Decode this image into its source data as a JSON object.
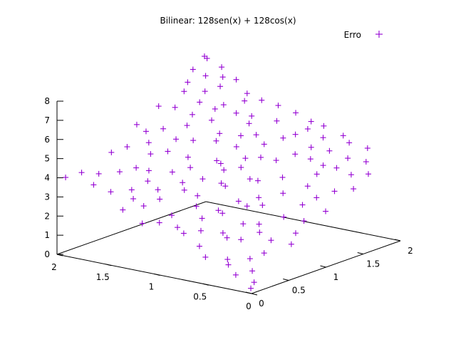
{
  "chart_data": {
    "type": "scatter",
    "title": "Bilinear: 128sen(x) + 128cos(x)",
    "legend": {
      "label": "Erro",
      "placement": "top-right"
    },
    "marker": "plus",
    "color": "#9400d3",
    "axes": {
      "x": {
        "range": [
          0,
          2
        ],
        "ticks": [
          "0",
          "0.5",
          "1",
          "1.5",
          "2"
        ]
      },
      "y": {
        "range": [
          0,
          2
        ],
        "ticks": [
          "0",
          "0.5",
          "1",
          "1.5",
          "2"
        ]
      },
      "z": {
        "range": [
          0,
          8
        ],
        "ticks": [
          "0",
          "1",
          "2",
          "3",
          "4",
          "5",
          "6",
          "7",
          "8"
        ]
      }
    },
    "grid": false,
    "series": [
      {
        "name": "Erro",
        "points": [
          {
            "x": 0.05,
            "y": 0.1,
            "z": 0.4
          },
          {
            "x": 0.1,
            "y": 0.3,
            "z": 1.6
          },
          {
            "x": 0.2,
            "y": 0.05,
            "z": 0.7
          },
          {
            "x": 0.3,
            "y": 0.5,
            "z": 2.2
          },
          {
            "x": 0.4,
            "y": 0.2,
            "z": 1.1
          },
          {
            "x": 0.5,
            "y": 0.8,
            "z": 3.0
          },
          {
            "x": 0.6,
            "y": 0.4,
            "z": 2.0
          },
          {
            "x": 0.7,
            "y": 1.0,
            "z": 3.8
          },
          {
            "x": 0.8,
            "y": 0.6,
            "z": 2.7
          },
          {
            "x": 0.9,
            "y": 1.3,
            "z": 4.4
          },
          {
            "x": 1.0,
            "y": 0.9,
            "z": 3.5
          },
          {
            "x": 1.1,
            "y": 1.5,
            "z": 5.1
          },
          {
            "x": 1.2,
            "y": 1.1,
            "z": 4.2
          },
          {
            "x": 1.3,
            "y": 1.7,
            "z": 5.6
          },
          {
            "x": 1.4,
            "y": 1.4,
            "z": 5.0
          },
          {
            "x": 1.5,
            "y": 1.9,
            "z": 6.3
          },
          {
            "x": 1.6,
            "y": 1.6,
            "z": 5.8
          },
          {
            "x": 1.7,
            "y": 1.8,
            "z": 6.6
          },
          {
            "x": 1.8,
            "y": 1.95,
            "z": 7.3
          },
          {
            "x": 1.9,
            "y": 1.85,
            "z": 7.9
          },
          {
            "x": 0.15,
            "y": 0.9,
            "z": 2.4
          },
          {
            "x": 0.25,
            "y": 1.2,
            "z": 3.1
          },
          {
            "x": 0.35,
            "y": 1.6,
            "z": 4.0
          },
          {
            "x": 0.45,
            "y": 1.9,
            "z": 4.8
          },
          {
            "x": 0.55,
            "y": 0.1,
            "z": 1.2
          },
          {
            "x": 0.65,
            "y": 0.15,
            "z": 1.6
          },
          {
            "x": 0.75,
            "y": 0.3,
            "z": 2.1
          },
          {
            "x": 0.85,
            "y": 0.2,
            "z": 2.0
          },
          {
            "x": 0.95,
            "y": 0.5,
            "z": 2.9
          },
          {
            "x": 1.05,
            "y": 0.3,
            "z": 2.6
          },
          {
            "x": 1.15,
            "y": 0.6,
            "z": 3.4
          },
          {
            "x": 1.25,
            "y": 0.4,
            "z": 3.1
          },
          {
            "x": 1.35,
            "y": 0.7,
            "z": 4.0
          },
          {
            "x": 1.45,
            "y": 0.5,
            "z": 3.7
          },
          {
            "x": 1.55,
            "y": 0.9,
            "z": 4.6
          },
          {
            "x": 1.65,
            "y": 0.8,
            "z": 4.5
          },
          {
            "x": 1.75,
            "y": 1.1,
            "z": 5.3
          },
          {
            "x": 1.85,
            "y": 1.0,
            "z": 5.2
          },
          {
            "x": 1.95,
            "y": 1.3,
            "z": 6.0
          },
          {
            "x": 1.9,
            "y": 0.6,
            "z": 4.6
          },
          {
            "x": 0.1,
            "y": 1.5,
            "z": 3.3
          },
          {
            "x": 0.2,
            "y": 1.8,
            "z": 4.2
          },
          {
            "x": 0.3,
            "y": 1.95,
            "z": 4.6
          },
          {
            "x": 0.4,
            "y": 1.4,
            "z": 3.9
          },
          {
            "x": 0.5,
            "y": 1.7,
            "z": 4.6
          },
          {
            "x": 0.6,
            "y": 1.2,
            "z": 3.8
          },
          {
            "x": 0.7,
            "y": 1.5,
            "z": 4.5
          },
          {
            "x": 0.8,
            "y": 1.8,
            "z": 5.3
          },
          {
            "x": 0.9,
            "y": 1.6,
            "z": 5.0
          },
          {
            "x": 1.0,
            "y": 1.9,
            "z": 5.8
          },
          {
            "x": 1.1,
            "y": 0.2,
            "z": 2.3
          },
          {
            "x": 1.2,
            "y": 0.1,
            "z": 2.3
          },
          {
            "x": 1.3,
            "y": 0.25,
            "z": 2.9
          },
          {
            "x": 1.4,
            "y": 0.1,
            "z": 2.8
          },
          {
            "x": 1.5,
            "y": 0.35,
            "z": 3.4
          },
          {
            "x": 1.6,
            "y": 0.2,
            "z": 3.4
          },
          {
            "x": 1.7,
            "y": 0.45,
            "z": 4.0
          },
          {
            "x": 1.8,
            "y": 0.3,
            "z": 4.0
          },
          {
            "x": 1.9,
            "y": 0.2,
            "z": 4.1
          },
          {
            "x": 1.95,
            "y": 0.05,
            "z": 4.0
          },
          {
            "x": 0.05,
            "y": 0.6,
            "z": 1.7
          },
          {
            "x": 0.12,
            "y": 0.75,
            "z": 2.0
          },
          {
            "x": 0.22,
            "y": 0.55,
            "z": 1.8
          },
          {
            "x": 0.32,
            "y": 0.85,
            "z": 2.5
          },
          {
            "x": 0.42,
            "y": 0.65,
            "z": 2.3
          },
          {
            "x": 0.52,
            "y": 0.35,
            "z": 1.9
          },
          {
            "x": 0.62,
            "y": 0.75,
            "z": 2.9
          },
          {
            "x": 0.72,
            "y": 0.55,
            "z": 2.7
          },
          {
            "x": 0.82,
            "y": 1.05,
            "z": 3.7
          },
          {
            "x": 0.92,
            "y": 0.85,
            "z": 3.5
          },
          {
            "x": 1.02,
            "y": 1.25,
            "z": 4.3
          },
          {
            "x": 1.12,
            "y": 1.05,
            "z": 4.2
          },
          {
            "x": 1.22,
            "y": 1.45,
            "z": 5.0
          },
          {
            "x": 1.32,
            "y": 1.25,
            "z": 4.9
          },
          {
            "x": 1.42,
            "y": 1.65,
            "z": 5.7
          },
          {
            "x": 1.52,
            "y": 1.45,
            "z": 5.5
          },
          {
            "x": 1.62,
            "y": 1.25,
            "z": 5.4
          },
          {
            "x": 1.72,
            "y": 1.55,
            "z": 6.1
          },
          {
            "x": 1.82,
            "y": 1.35,
            "z": 6.0
          },
          {
            "x": 1.92,
            "y": 1.65,
            "z": 6.8
          },
          {
            "x": 0.08,
            "y": 1.1,
            "z": 2.7
          },
          {
            "x": 0.18,
            "y": 1.35,
            "z": 3.3
          },
          {
            "x": 0.28,
            "y": 1.05,
            "z": 2.9
          },
          {
            "x": 0.38,
            "y": 1.25,
            "z": 3.5
          },
          {
            "x": 0.48,
            "y": 1.05,
            "z": 3.3
          },
          {
            "x": 0.58,
            "y": 1.55,
            "z": 4.3
          },
          {
            "x": 0.68,
            "y": 1.85,
            "z": 4.9
          },
          {
            "x": 0.78,
            "y": 1.35,
            "z": 4.3
          },
          {
            "x": 0.88,
            "y": 1.95,
            "z": 5.4
          },
          {
            "x": 0.98,
            "y": 1.45,
            "z": 4.8
          },
          {
            "x": 1.08,
            "y": 1.75,
            "z": 5.5
          },
          {
            "x": 1.18,
            "y": 1.9,
            "z": 6.0
          },
          {
            "x": 1.28,
            "y": 0.85,
            "z": 4.1
          },
          {
            "x": 1.38,
            "y": 0.95,
            "z": 4.4
          },
          {
            "x": 1.48,
            "y": 1.15,
            "z": 4.9
          },
          {
            "x": 1.58,
            "y": 1.05,
            "z": 5.0
          },
          {
            "x": 1.68,
            "y": 1.4,
            "z": 5.7
          },
          {
            "x": 1.78,
            "y": 1.7,
            "z": 6.4
          },
          {
            "x": 1.88,
            "y": 1.55,
            "z": 6.5
          },
          {
            "x": 1.98,
            "y": 1.8,
            "z": 7.2
          },
          {
            "x": 0.03,
            "y": 0.03,
            "z": 0.2
          },
          {
            "x": 0.13,
            "y": 0.18,
            "z": 0.8
          },
          {
            "x": 0.23,
            "y": 0.28,
            "z": 1.2
          },
          {
            "x": 0.33,
            "y": 0.12,
            "z": 1.0
          },
          {
            "x": 0.43,
            "y": 0.42,
            "z": 1.8
          },
          {
            "x": 0.53,
            "y": 0.58,
            "z": 2.3
          },
          {
            "x": 0.63,
            "y": 0.92,
            "z": 3.1
          },
          {
            "x": 0.73,
            "y": 0.78,
            "z": 3.0
          },
          {
            "x": 0.83,
            "y": 0.42,
            "z": 2.5
          },
          {
            "x": 0.93,
            "y": 0.22,
            "z": 2.2
          },
          {
            "x": 1.03,
            "y": 0.62,
            "z": 3.2
          },
          {
            "x": 1.13,
            "y": 0.82,
            "z": 3.7
          },
          {
            "x": 1.23,
            "y": 0.68,
            "z": 3.6
          },
          {
            "x": 1.33,
            "y": 0.48,
            "z": 3.4
          },
          {
            "x": 1.43,
            "y": 0.28,
            "z": 3.1
          },
          {
            "x": 1.53,
            "y": 0.62,
            "z": 4.0
          },
          {
            "x": 1.63,
            "y": 0.58,
            "z": 4.1
          },
          {
            "x": 1.73,
            "y": 0.88,
            "z": 4.9
          },
          {
            "x": 1.83,
            "y": 0.72,
            "z": 4.8
          },
          {
            "x": 1.93,
            "y": 0.98,
            "z": 5.5
          },
          {
            "x": 0.1,
            "y": 1.7,
            "z": 3.8
          },
          {
            "x": 0.2,
            "y": 1.6,
            "z": 3.8
          },
          {
            "x": 0.35,
            "y": 1.75,
            "z": 4.3
          },
          {
            "x": 0.45,
            "y": 1.55,
            "z": 4.1
          },
          {
            "x": 0.55,
            "y": 1.95,
            "z": 5.0
          },
          {
            "x": 0.65,
            "y": 1.65,
            "z": 4.7
          },
          {
            "x": 0.75,
            "y": 1.95,
            "z": 5.3
          },
          {
            "x": 0.85,
            "y": 1.7,
            "z": 5.1
          },
          {
            "x": 0.95,
            "y": 1.1,
            "z": 4.1
          },
          {
            "x": 1.05,
            "y": 1.0,
            "z": 4.0
          },
          {
            "x": 1.15,
            "y": 1.3,
            "z": 4.7
          },
          {
            "x": 1.25,
            "y": 1.6,
            "z": 5.4
          },
          {
            "x": 1.35,
            "y": 1.9,
            "z": 6.1
          },
          {
            "x": 1.45,
            "y": 1.8,
            "z": 6.1
          },
          {
            "x": 1.55,
            "y": 1.65,
            "z": 6.0
          },
          {
            "x": 1.65,
            "y": 1.95,
            "z": 6.8
          },
          {
            "x": 1.75,
            "y": 1.9,
            "z": 6.9
          },
          {
            "x": 1.85,
            "y": 1.8,
            "z": 7.0
          },
          {
            "x": 1.95,
            "y": 1.95,
            "z": 7.6
          },
          {
            "x": 1.7,
            "y": 0.1,
            "z": 3.8
          }
        ]
      }
    ]
  }
}
